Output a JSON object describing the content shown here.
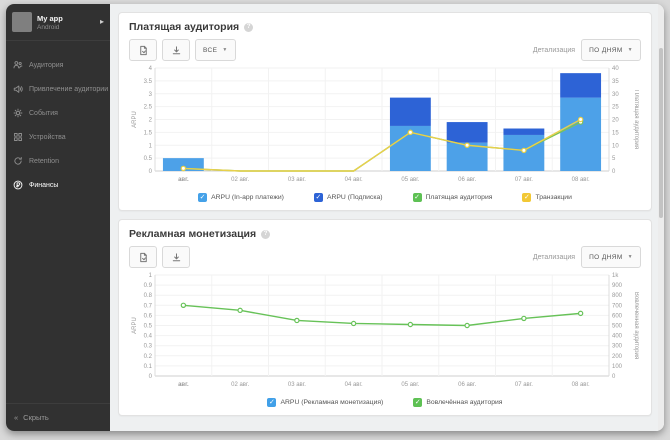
{
  "colors": {
    "bar_light_blue": "#4da1e8",
    "bar_dark_blue": "#2d63d6",
    "line_green": "#7bc257",
    "line_yellow": "#e9d04b",
    "legend_green": "#5ec154",
    "legend_yellow": "#f2c835",
    "legend_blue": "#41a0e8",
    "sidebar_bg": "#313131"
  },
  "sidebar": {
    "app": {
      "name": "My app",
      "platform": "Android"
    },
    "items": [
      {
        "label": "Аудитория",
        "icon": "audience-icon",
        "active": false
      },
      {
        "label": "Привлечение аудитории",
        "icon": "acquisition-icon",
        "active": false
      },
      {
        "label": "События",
        "icon": "events-icon",
        "active": false
      },
      {
        "label": "Устройства",
        "icon": "devices-icon",
        "active": false
      },
      {
        "label": "Retention",
        "icon": "retention-icon",
        "active": false
      },
      {
        "label": "Финансы",
        "icon": "finance-icon",
        "active": true
      }
    ],
    "collapse_label": "Скрыть"
  },
  "panels": [
    {
      "title": "Платящая аудитория",
      "toolbar": {
        "filter_label": "ВСЕ",
        "detail_label": "Детализация",
        "detail_value": "ПО ДНЯМ"
      }
    },
    {
      "title": "Рекламная монетизация",
      "toolbar": {
        "detail_label": "Детализация",
        "detail_value": "ПО ДНЯМ"
      }
    }
  ],
  "chart_data": [
    {
      "type": "bar",
      "title": "Платящая аудитория",
      "categories": [
        "авг.",
        "02 авг.",
        "03 авг.",
        "04 авг.",
        "05 авг.",
        "06 авг.",
        "07 авг.",
        "08 авг."
      ],
      "series": [
        {
          "name": "ARPU (In-app платежи)",
          "kind": "bar",
          "axis": "left",
          "color": "#4da1e8",
          "values": [
            0.5,
            0,
            0,
            0,
            1.75,
            1.1,
            1.4,
            2.85
          ]
        },
        {
          "name": "ARPU (Подписка)",
          "kind": "bar",
          "axis": "left",
          "color": "#2d63d6",
          "values": [
            0,
            0,
            0,
            0,
            1.1,
            0.8,
            0.25,
            0.95
          ]
        },
        {
          "name": "Платящая аудитория",
          "kind": "line",
          "axis": "right",
          "color": "#7bc257",
          "values": [
            1,
            0,
            0,
            0,
            15,
            10,
            8,
            19
          ]
        },
        {
          "name": "Транзакции",
          "kind": "line",
          "axis": "right",
          "color": "#e9d04b",
          "values": [
            1,
            0,
            0,
            0,
            15,
            10,
            8,
            20
          ]
        }
      ],
      "left_axis": {
        "label": "ARPU",
        "min": 0,
        "max": 4,
        "ticks": [
          "0",
          "0.5",
          "1",
          "1.5",
          "2",
          "2.5",
          "3",
          "3.5",
          "4"
        ]
      },
      "right_axis": {
        "label": "Платящая аудитория",
        "min": 0,
        "max": 40,
        "ticks": [
          "0",
          "5",
          "10",
          "15",
          "20",
          "25",
          "30",
          "35",
          "40"
        ]
      },
      "grid": true,
      "legend_position": "bottom",
      "legend": [
        {
          "label": "ARPU (In-app платежи)",
          "color": "#45a1e8"
        },
        {
          "label": "ARPU (Подписка)",
          "color": "#2d63d6"
        },
        {
          "label": "Платящая аудитория",
          "color": "#5ec154"
        },
        {
          "label": "Транзакции",
          "color": "#f2c835"
        }
      ]
    },
    {
      "type": "line",
      "title": "Рекламная монетизация",
      "categories": [
        "авг.",
        "02 авг.",
        "03 авг.",
        "04 авг.",
        "05 авг.",
        "06 авг.",
        "07 авг.",
        "08 авг."
      ],
      "series": [
        {
          "name": "Вовлечённая аудитория",
          "kind": "line",
          "axis": "right",
          "color": "#67c258",
          "values": [
            700,
            650,
            550,
            520,
            510,
            500,
            570,
            620
          ]
        }
      ],
      "left_axis": {
        "label": "ARPU",
        "min": 0,
        "max": 1,
        "ticks": [
          "0",
          "0.1",
          "0.2",
          "0.3",
          "0.4",
          "0.5",
          "0.6",
          "0.7",
          "0.8",
          "0.9",
          "1"
        ]
      },
      "right_axis": {
        "label": "Вовлечённая аудитория",
        "min": 0,
        "max": 1000,
        "ticks": [
          "0",
          "100",
          "200",
          "300",
          "400",
          "500",
          "600",
          "700",
          "800",
          "900",
          "1k"
        ]
      },
      "grid": true,
      "legend_position": "bottom",
      "legend": [
        {
          "label": "ARPU (Рекламная монетизация)",
          "color": "#41a0e8"
        },
        {
          "label": "Вовлечённая аудитория",
          "color": "#5ec154"
        }
      ]
    }
  ]
}
